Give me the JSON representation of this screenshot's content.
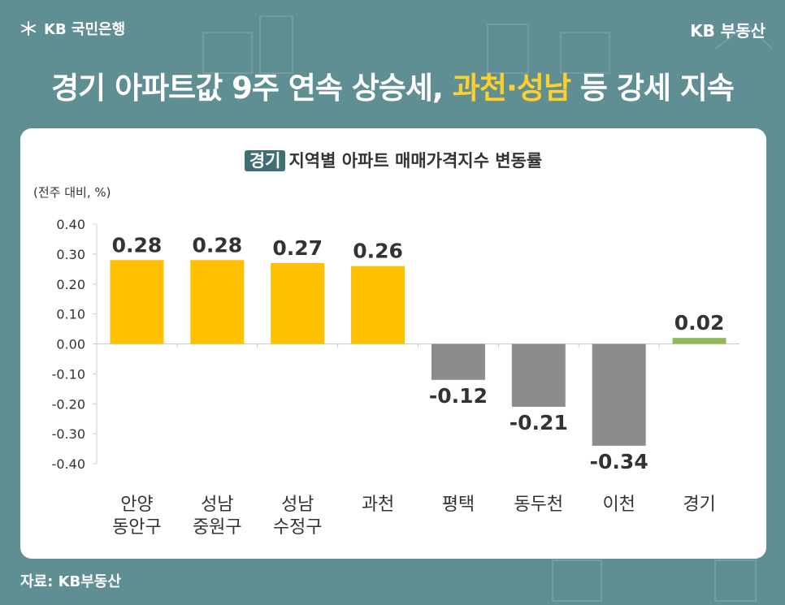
{
  "header": {
    "bank_logo": "KB 국민은행",
    "brand": "KB 부동산",
    "headline_main": "경기 아파트값 9주 연속 상승세, ",
    "headline_highlight": "과천·성남",
    "headline_tail": " 등 강세 지속"
  },
  "chart_data": {
    "type": "bar",
    "title_tag": "경기",
    "title": "지역별 아파트 매매가격지수 변동률",
    "unit_label": "(전주 대비, %)",
    "categories": [
      [
        "안양",
        "동안구"
      ],
      [
        "성남",
        "중원구"
      ],
      [
        "성남",
        "수정구"
      ],
      [
        "과천"
      ],
      [
        "평택"
      ],
      [
        "동두천"
      ],
      [
        "이천"
      ],
      [
        "경기"
      ]
    ],
    "values": [
      0.28,
      0.28,
      0.27,
      0.26,
      -0.12,
      -0.21,
      -0.34,
      0.02
    ],
    "value_labels": [
      "0.28",
      "0.28",
      "0.27",
      "0.26",
      "-0.12",
      "-0.21",
      "-0.34",
      "0.02"
    ],
    "bar_colors": [
      "#ffc000",
      "#ffc000",
      "#ffc000",
      "#ffc000",
      "#8c8c8c",
      "#8c8c8c",
      "#8c8c8c",
      "#8fb85a"
    ],
    "ylim": [
      -0.4,
      0.4
    ],
    "yticks": [
      "0.40",
      "0.30",
      "0.20",
      "0.10",
      "0.00",
      "-0.10",
      "-0.20",
      "-0.30",
      "-0.40"
    ],
    "ytick_values": [
      0.4,
      0.3,
      0.2,
      0.1,
      0,
      -0.1,
      -0.2,
      -0.3,
      -0.4
    ],
    "grid": false,
    "legend": "none"
  },
  "footer": {
    "source": "자료: KB부동산"
  }
}
